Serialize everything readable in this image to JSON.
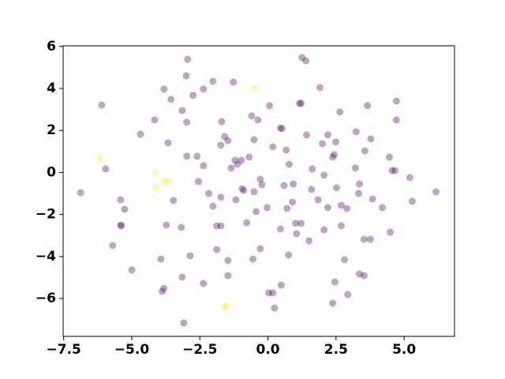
{
  "chart_data": {
    "type": "scatter",
    "x": [
      -2.95,
      1.25,
      1.39,
      -3.0,
      -2.02,
      -1.27,
      -3.82,
      1.91,
      -3.56,
      -2.75,
      -2.37,
      -6.1,
      0.06,
      1.16,
      1.22,
      3.65,
      4.72,
      -3.15,
      2.64,
      -0.6,
      -0.37,
      -2.98,
      -4.16,
      -1.7,
      4.72,
      0.46,
      0.52,
      3.24,
      1.42,
      2.2,
      -4.68,
      2.49,
      3.78,
      -1.59,
      -1.47,
      -0.51,
      2.0,
      -1.73,
      -3.67,
      0.18,
      0.67,
      3.56,
      2.43,
      2.38,
      4.46,
      -2.98,
      -2.6,
      -1.21,
      -0.98,
      -0.69,
      0.78,
      -2.37,
      -1.12,
      -1.35,
      1.63,
      3.21,
      4.56,
      4.66,
      -5.96,
      2.06,
      5.21,
      -0.28,
      3.36,
      -2.55,
      -0.22,
      0.59,
      0.93,
      2.52,
      1.6,
      -0.95,
      -0.89,
      -0.51,
      -6.88,
      3.33,
      -2.17,
      6.17,
      -1.73,
      -3.47,
      -5.41,
      -1.18,
      1.84,
      3.84,
      0.9,
      5.3,
      -2.02,
      2.2,
      2.69,
      2.9,
      -0.03,
      0.7,
      4.2,
      -0.43,
      -5.26,
      -0.78,
      1.02,
      1.22,
      -1.88,
      -1.73,
      -3.73,
      -5.41,
      -5.38,
      2.69,
      -3.18,
      0.46,
      2.06,
      1.05,
      4.49,
      3.53,
      3.76,
      1.51,
      -5.7,
      -1.88,
      -0.28,
      -2.86,
      0.76,
      -3.93,
      -1.47,
      -0.55,
      2.81,
      -5.0,
      3.36,
      3.53,
      -1.47,
      -3.15,
      2.46,
      -2.37,
      0.49,
      -3.82,
      -3.88,
      0.03,
      0.18,
      2.93,
      2.38,
      0.24,
      -3.09,
      -6.19,
      -4.13,
      -4.13,
      -3.82,
      -3.67,
      -0.51,
      -1.59,
      -1.53
    ],
    "values": [
      5.39,
      5.47,
      5.32,
      4.6,
      4.34,
      4.3,
      3.97,
      4.04,
      3.48,
      3.67,
      3.97,
      3.21,
      3.18,
      3.29,
      3.29,
      3.18,
      3.4,
      2.95,
      2.88,
      2.69,
      2.5,
      2.39,
      2.5,
      2.42,
      2.5,
      2.12,
      2.09,
      1.94,
      1.79,
      1.79,
      1.82,
      1.45,
      1.6,
      1.71,
      1.52,
      1.56,
      1.37,
      1.3,
      1.41,
      1.22,
      1.07,
      1.03,
      0.85,
      0.73,
      0.73,
      0.77,
      0.77,
      0.58,
      0.58,
      0.73,
      0.39,
      0.32,
      0.39,
      0.21,
      0.17,
      0.21,
      0.09,
      0.09,
      0.17,
      -0.13,
      -0.24,
      -0.32,
      -0.55,
      -0.43,
      -0.58,
      -0.62,
      -0.55,
      -0.73,
      -0.81,
      -0.77,
      -0.85,
      -0.92,
      -0.96,
      -1.0,
      -1.0,
      -0.92,
      -1.18,
      -1.33,
      -1.3,
      -1.3,
      -1.3,
      -1.26,
      -1.41,
      -1.37,
      -1.6,
      -1.67,
      -1.56,
      -1.71,
      -1.67,
      -1.71,
      -1.67,
      -1.86,
      -1.75,
      -2.39,
      -2.42,
      -2.42,
      -2.54,
      -2.54,
      -2.5,
      -2.5,
      -2.54,
      -2.54,
      -2.61,
      -2.69,
      -2.73,
      -2.91,
      -2.84,
      -3.18,
      -3.18,
      -3.25,
      -3.48,
      -3.67,
      -3.63,
      -3.97,
      -3.93,
      -4.12,
      -4.19,
      -4.12,
      -4.15,
      -4.64,
      -4.83,
      -4.91,
      -4.91,
      -4.98,
      -5.21,
      -5.28,
      -5.36,
      -5.51,
      -5.66,
      -5.73,
      -5.73,
      -5.81,
      -6.22,
      -6.45,
      -7.16,
      0.66,
      -0.02,
      -0.7,
      -0.43,
      -0.43,
      4.0,
      -6.37,
      -6.37
    ],
    "colors": [
      "#440154",
      "#440154",
      "#440154",
      "#440154",
      "#440154",
      "#440154",
      "#440154",
      "#440154",
      "#440154",
      "#440154",
      "#440154",
      "#440154",
      "#440154",
      "#440154",
      "#440154",
      "#440154",
      "#440154",
      "#440154",
      "#440154",
      "#440154",
      "#440154",
      "#440154",
      "#440154",
      "#440154",
      "#440154",
      "#440154",
      "#440154",
      "#440154",
      "#440154",
      "#440154",
      "#440154",
      "#440154",
      "#440154",
      "#440154",
      "#440154",
      "#440154",
      "#440154",
      "#440154",
      "#440154",
      "#440154",
      "#440154",
      "#440154",
      "#440154",
      "#440154",
      "#440154",
      "#440154",
      "#440154",
      "#440154",
      "#440154",
      "#440154",
      "#440154",
      "#440154",
      "#440154",
      "#440154",
      "#440154",
      "#440154",
      "#440154",
      "#440154",
      "#440154",
      "#440154",
      "#440154",
      "#440154",
      "#440154",
      "#440154",
      "#440154",
      "#440154",
      "#440154",
      "#440154",
      "#440154",
      "#440154",
      "#440154",
      "#440154",
      "#440154",
      "#440154",
      "#440154",
      "#440154",
      "#440154",
      "#440154",
      "#440154",
      "#440154",
      "#440154",
      "#440154",
      "#440154",
      "#440154",
      "#440154",
      "#440154",
      "#440154",
      "#440154",
      "#440154",
      "#440154",
      "#440154",
      "#440154",
      "#440154",
      "#440154",
      "#440154",
      "#440154",
      "#440154",
      "#440154",
      "#440154",
      "#440154",
      "#440154",
      "#440154",
      "#440154",
      "#440154",
      "#440154",
      "#440154",
      "#440154",
      "#440154",
      "#440154",
      "#440154",
      "#440154",
      "#440154",
      "#440154",
      "#440154",
      "#440154",
      "#440154",
      "#440154",
      "#440154",
      "#440154",
      "#440154",
      "#440154",
      "#440154",
      "#440154",
      "#440154",
      "#440154",
      "#440154",
      "#440154",
      "#440154",
      "#440154",
      "#440154",
      "#440154",
      "#440154",
      "#440154",
      "#440154",
      "#440154",
      "#fde725",
      "#fde725",
      "#fde725",
      "#fde725",
      "#fde725",
      "#fde725",
      "#fde725",
      "#fde725"
    ],
    "alpha": 0.35,
    "xlim": [
      -7.52,
      6.85
    ],
    "xticks": [
      {
        "value": -7.5,
        "label": "−7.5"
      },
      {
        "value": -5,
        "label": "−5.0"
      },
      {
        "value": -2.5,
        "label": "−2.5"
      },
      {
        "value": 0,
        "label": "0.0"
      },
      2.5,
      {
        "value": 5,
        "label": "5.0"
      }
    ],
    "ylim": [
      -7.8,
      6.03
    ],
    "yticks": [
      {
        "value": -6,
        "label": "−6"
      },
      {
        "value": -4,
        "label": "−4"
      },
      {
        "value": -2,
        "label": "−2"
      },
      0,
      2,
      4,
      6
    ],
    "grid": false
  }
}
